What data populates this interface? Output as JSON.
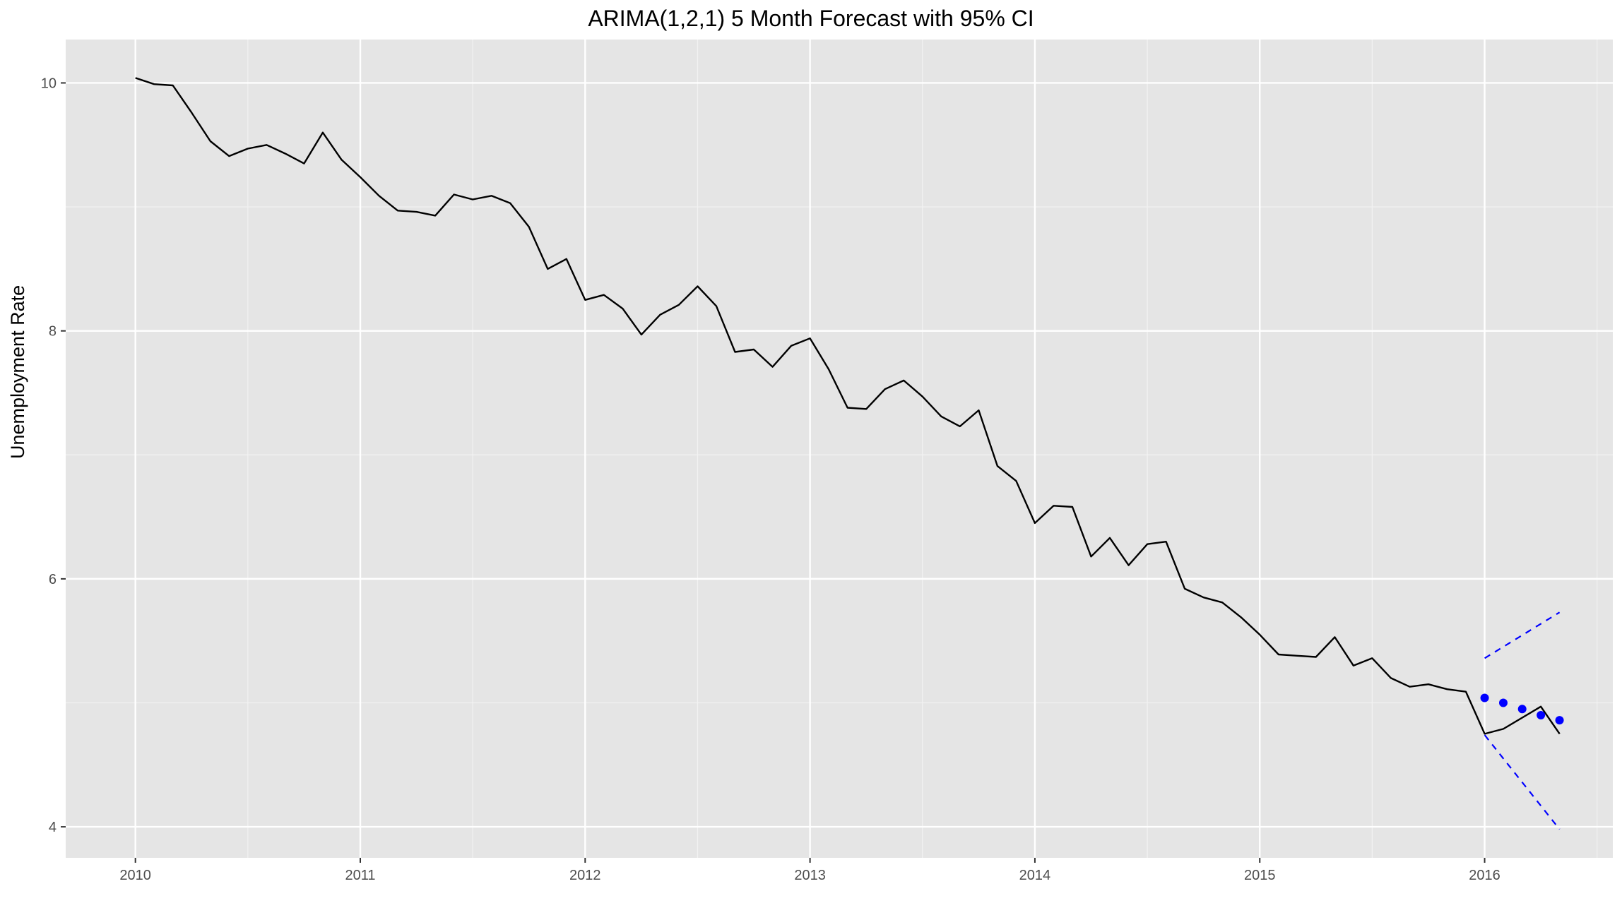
{
  "chart_data": {
    "type": "line",
    "title": "ARIMA(1,2,1) 5 Month Forecast with 95% CI",
    "xlabel": "",
    "ylabel": "Unemployment Rate",
    "xlim": [
      2009.69,
      2016.57
    ],
    "ylim": [
      3.75,
      10.35
    ],
    "x_ticks": [
      "2010",
      "2011",
      "2012",
      "2013",
      "2014",
      "2015",
      "2016"
    ],
    "y_ticks": [
      "4",
      "6",
      "8"
    ],
    "y_ticks_top": "10",
    "grid": true,
    "panel_background": "#e5e5e5",
    "series": [
      {
        "kind": "actual",
        "color": "#000000",
        "start": 2010.0,
        "step_months": 1,
        "values": [
          10.04,
          9.99,
          9.98,
          9.76,
          9.53,
          9.41,
          9.47,
          9.5,
          9.43,
          9.35,
          9.6,
          9.38,
          9.24,
          9.09,
          8.97,
          8.96,
          8.93,
          9.1,
          9.06,
          9.09,
          9.03,
          8.84,
          8.5,
          8.58,
          8.25,
          8.29,
          8.18,
          7.97,
          8.13,
          8.21,
          8.36,
          8.2,
          7.83,
          7.85,
          7.71,
          7.88,
          7.94,
          7.69,
          7.38,
          7.37,
          7.53,
          7.6,
          7.47,
          7.31,
          7.23,
          7.36,
          6.91,
          6.79,
          6.45,
          6.59,
          6.58,
          6.18,
          6.33,
          6.11,
          6.28,
          6.3,
          5.92,
          5.85,
          5.81,
          5.69,
          5.55,
          5.39,
          5.38,
          5.37,
          5.53,
          5.3,
          5.36,
          5.2,
          5.13,
          5.15,
          5.11,
          5.09,
          4.75,
          4.79,
          4.88,
          4.97,
          4.75
        ]
      },
      {
        "kind": "forecast",
        "color": "#0000ff",
        "x": [
          2016.0,
          2016.083,
          2016.167,
          2016.25,
          2016.333
        ],
        "values": [
          5.04,
          5.0,
          4.95,
          4.9,
          4.86
        ]
      },
      {
        "kind": "upper_ci",
        "color": "#0000ff",
        "x": [
          2016.0,
          2016.333
        ],
        "values": [
          5.36,
          5.73
        ]
      },
      {
        "kind": "lower_ci",
        "color": "#0000ff",
        "x": [
          2016.0,
          2016.333
        ],
        "values": [
          4.74,
          3.98
        ]
      }
    ]
  }
}
